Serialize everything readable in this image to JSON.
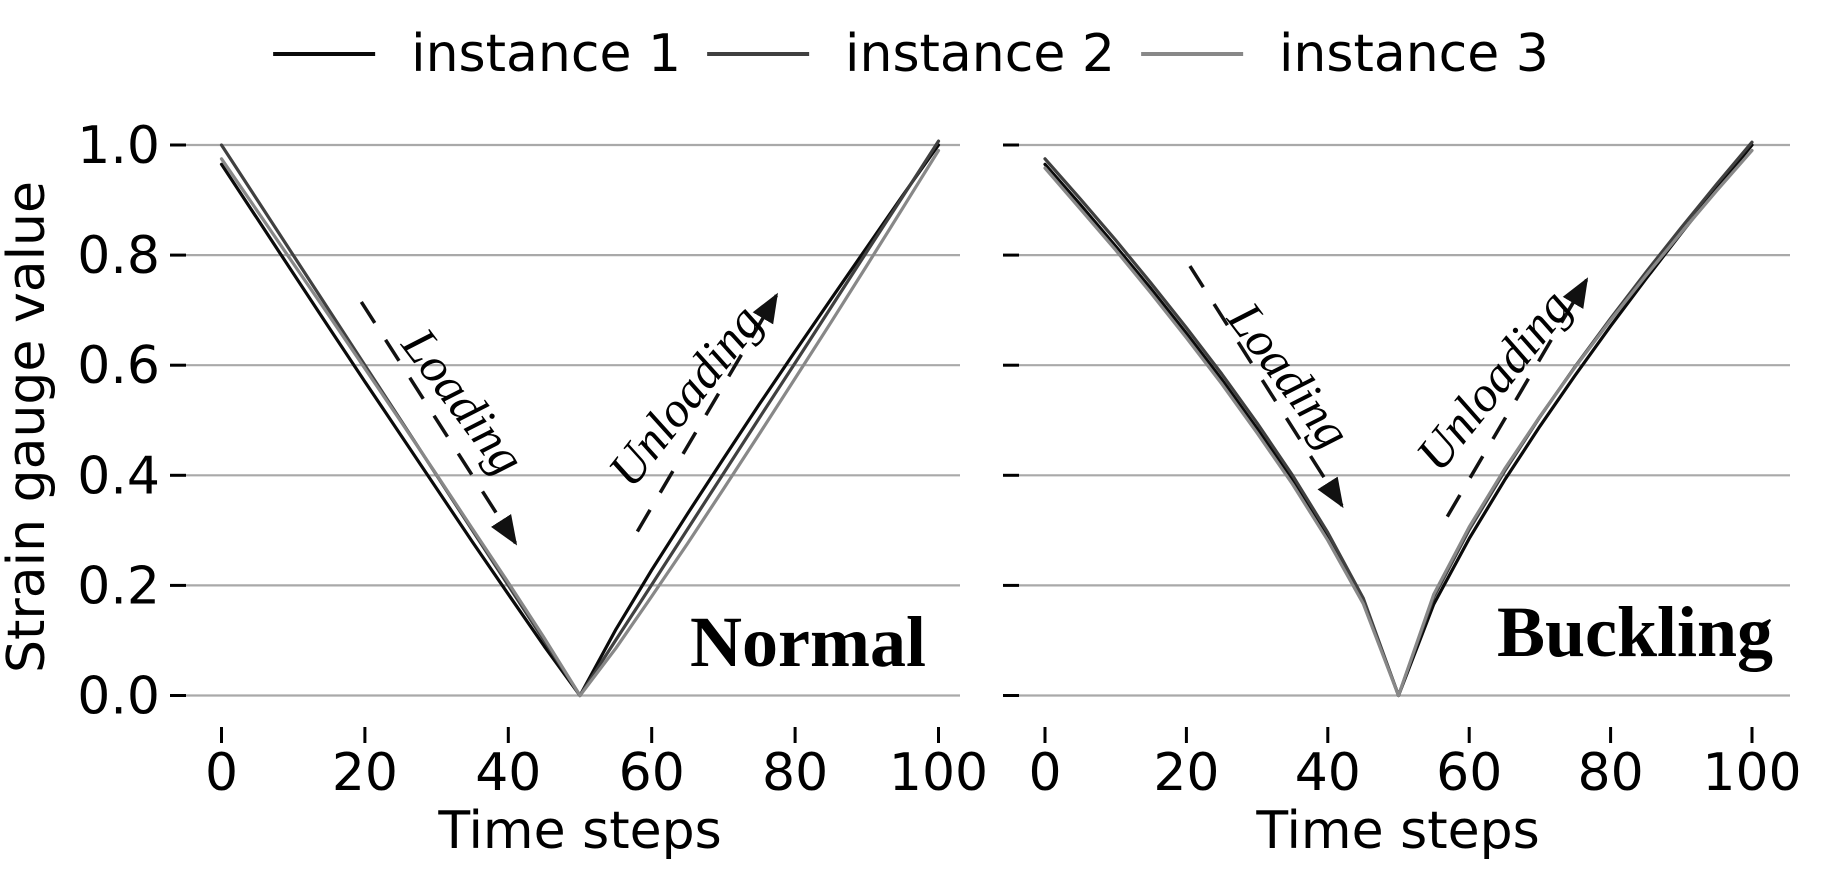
{
  "figure": {
    "background": "#ffffff",
    "text_color": "#000000",
    "grid_color": "#a9a9a9",
    "legend": {
      "position": "top-center",
      "items": [
        {
          "label": "instance 1",
          "color": "#0a0a0a"
        },
        {
          "label": "instance 2",
          "color": "#404040"
        },
        {
          "label": "instance 3",
          "color": "#888888"
        }
      ]
    },
    "y_axis": {
      "label": "Strain gauge value",
      "tick_labels": [
        "1.0",
        "0.8",
        "0.6",
        "0.4",
        "0.2",
        "0.0"
      ],
      "tick_values": [
        1.0,
        0.8,
        0.6,
        0.4,
        0.2,
        0.0
      ]
    },
    "x_axis": {
      "label": "Time steps",
      "tick_labels": [
        "0",
        "20",
        "40",
        "60",
        "80",
        "100"
      ],
      "tick_values": [
        0,
        20,
        40,
        60,
        80,
        100
      ]
    }
  },
  "chart_data": [
    {
      "type": "line",
      "title": "Normal",
      "xlabel": "Time steps",
      "ylabel": "Strain gauge value",
      "xlim": [
        -6,
        103
      ],
      "ylim": [
        -0.07,
        1.05
      ],
      "xticks": [
        0,
        20,
        40,
        60,
        80,
        100
      ],
      "yticks": [
        0.0,
        0.2,
        0.4,
        0.6,
        0.8,
        1.0
      ],
      "grid": "horizontal",
      "legend_entries": [
        "instance 1",
        "instance 2",
        "instance 3"
      ],
      "x": [
        0,
        5,
        10,
        15,
        20,
        25,
        30,
        35,
        40,
        45,
        50,
        55,
        60,
        65,
        70,
        75,
        80,
        85,
        90,
        95,
        100
      ],
      "series": [
        {
          "name": "instance 1",
          "color": "#0a0a0a",
          "values": [
            0.965,
            0.866,
            0.767,
            0.668,
            0.57,
            0.473,
            0.376,
            0.279,
            0.184,
            0.09,
            0.0,
            0.12,
            0.228,
            0.33,
            0.43,
            0.529,
            0.625,
            0.72,
            0.814,
            0.908,
            1.0
          ]
        },
        {
          "name": "instance 2",
          "color": "#404040",
          "values": [
            1.0,
            0.9,
            0.8,
            0.7,
            0.6,
            0.5,
            0.4,
            0.3,
            0.2,
            0.1,
            0.0,
            0.101,
            0.201,
            0.302,
            0.403,
            0.504,
            0.604,
            0.705,
            0.806,
            0.906,
            1.007
          ]
        },
        {
          "name": "instance 3",
          "color": "#888888",
          "values": [
            0.975,
            0.88,
            0.785,
            0.69,
            0.594,
            0.498,
            0.401,
            0.303,
            0.205,
            0.105,
            0.0,
            0.086,
            0.18,
            0.276,
            0.375,
            0.475,
            0.576,
            0.678,
            0.781,
            0.885,
            0.99
          ]
        }
      ],
      "annotations": [
        {
          "text": "Loading",
          "text_t": 33.8,
          "text_v": 0.535,
          "rotation_deg": 53,
          "arrow": {
            "from_t": 19.5,
            "from_v": 0.715,
            "to_t": 41.0,
            "to_v": 0.277,
            "style": "dashed",
            "head": "end"
          }
        },
        {
          "text": "Unloading",
          "text_t": 64.6,
          "text_v": 0.545,
          "rotation_deg": -52,
          "arrow": {
            "from_t": 58.0,
            "from_v": 0.298,
            "to_t": 77.4,
            "to_v": 0.727,
            "style": "dashed",
            "head": "end"
          }
        }
      ]
    },
    {
      "type": "line",
      "title": "Buckling",
      "xlabel": "Time steps",
      "ylabel": "Strain gauge value",
      "xlim": [
        -5,
        105
      ],
      "ylim": [
        -0.07,
        1.05
      ],
      "xticks": [
        0,
        20,
        40,
        60,
        80,
        100
      ],
      "yticks": [
        0.0,
        0.2,
        0.4,
        0.6,
        0.8,
        1.0
      ],
      "grid": "horizontal",
      "legend_entries": [
        "instance 1",
        "instance 2",
        "instance 3"
      ],
      "x": [
        0,
        5,
        10,
        15,
        20,
        25,
        30,
        35,
        40,
        45,
        50,
        55,
        60,
        65,
        70,
        75,
        80,
        85,
        90,
        95,
        100
      ],
      "series": [
        {
          "name": "instance 1",
          "color": "#0a0a0a",
          "values": [
            0.965,
            0.892,
            0.816,
            0.739,
            0.658,
            0.574,
            0.485,
            0.391,
            0.289,
            0.172,
            0.0,
            0.166,
            0.285,
            0.391,
            0.489,
            0.582,
            0.671,
            0.757,
            0.84,
            0.921,
            1.0
          ]
        },
        {
          "name": "instance 2",
          "color": "#404040",
          "values": [
            0.975,
            0.902,
            0.827,
            0.749,
            0.668,
            0.584,
            0.495,
            0.4,
            0.296,
            0.177,
            0.0,
            0.179,
            0.301,
            0.407,
            0.506,
            0.598,
            0.685,
            0.769,
            0.85,
            0.929,
            1.005
          ]
        },
        {
          "name": "instance 3",
          "color": "#888888",
          "values": [
            0.958,
            0.884,
            0.809,
            0.731,
            0.65,
            0.566,
            0.477,
            0.384,
            0.282,
            0.167,
            0.0,
            0.184,
            0.306,
            0.411,
            0.507,
            0.597,
            0.682,
            0.763,
            0.841,
            0.917,
            0.99
          ]
        }
      ],
      "annotations": [
        {
          "text": "Loading",
          "text_t": 34.6,
          "text_v": 0.582,
          "rotation_deg": 53,
          "arrow": {
            "from_t": 20.5,
            "from_v": 0.78,
            "to_t": 42.0,
            "to_v": 0.345,
            "style": "dashed",
            "head": "end"
          }
        },
        {
          "text": "Unloading",
          "text_t": 63.4,
          "text_v": 0.573,
          "rotation_deg": -51.5,
          "arrow": {
            "from_t": 56.9,
            "from_v": 0.325,
            "to_t": 76.6,
            "to_v": 0.755,
            "style": "dashed",
            "head": "end"
          }
        }
      ]
    }
  ]
}
